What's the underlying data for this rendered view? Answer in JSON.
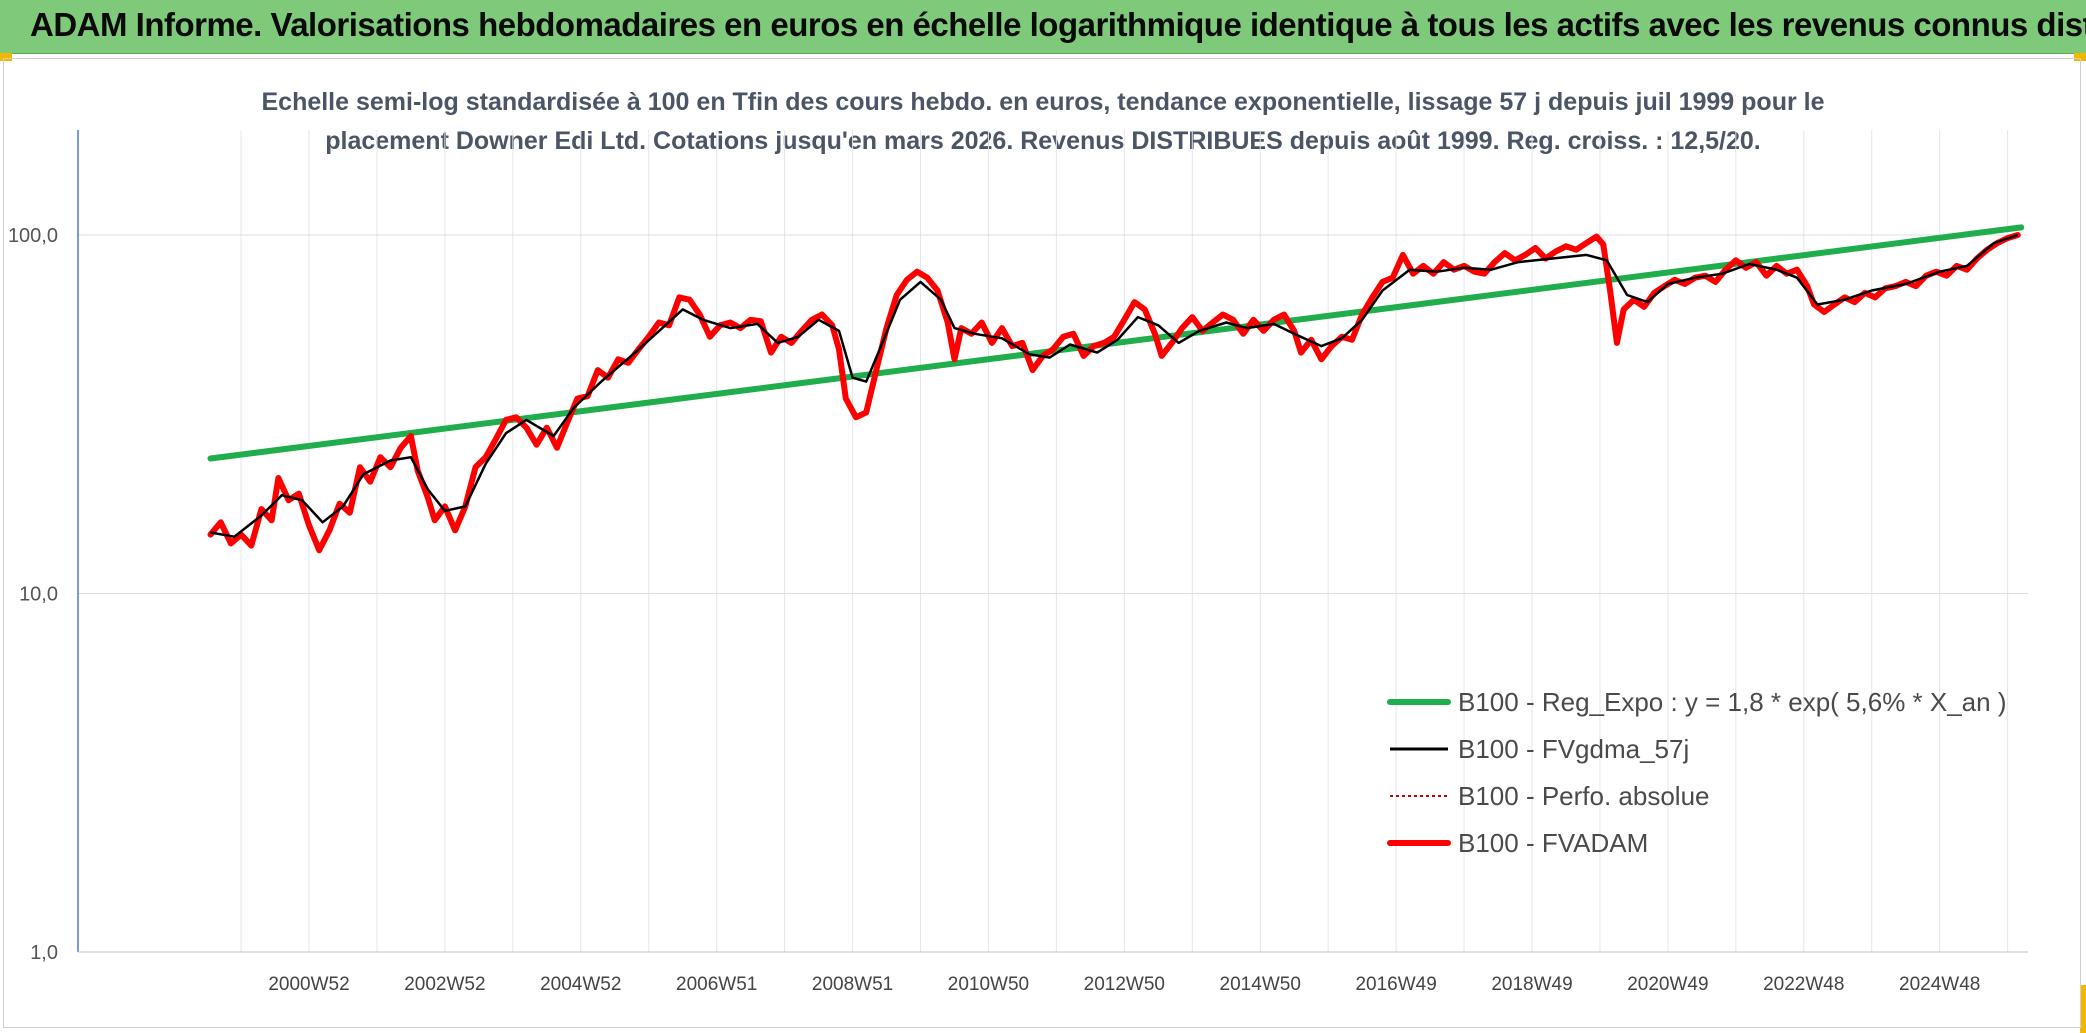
{
  "header": {
    "title": "ADAM Informe. Valorisations hebdomadaires en euros en échelle logarithmique identique à tous les actifs avec les revenus connus distribués"
  },
  "chart_data": {
    "type": "line",
    "title_line1": "Echelle semi-log standardisée à 100 en Tfin des cours hebdo. en euros, tendance exponentielle, lissage 57 j depuis juil 1999 pour le",
    "title_line2": "placement Downer Edi Ltd. Cotations jusqu'en mars 2026. Revenus DISTRIBUES depuis août 1999. Reg. croiss. : 12,5/20.",
    "y_scale": "log",
    "ylim": [
      1,
      100
    ],
    "y_ticks": [
      {
        "value": 100,
        "label": "100,0"
      },
      {
        "value": 10,
        "label": "10,0"
      },
      {
        "value": 1,
        "label": "1,0"
      }
    ],
    "x_range": [
      1997.6,
      2026.3
    ],
    "x_ticks": [
      {
        "value": 2001.0,
        "label": "2000W52"
      },
      {
        "value": 2003.0,
        "label": "2002W52"
      },
      {
        "value": 2005.0,
        "label": "2004W52"
      },
      {
        "value": 2007.0,
        "label": "2006W51"
      },
      {
        "value": 2009.0,
        "label": "2008W51"
      },
      {
        "value": 2011.0,
        "label": "2010W50"
      },
      {
        "value": 2013.0,
        "label": "2012W50"
      },
      {
        "value": 2015.0,
        "label": "2014W50"
      },
      {
        "value": 2017.0,
        "label": "2016W49"
      },
      {
        "value": 2019.0,
        "label": "2018W49"
      },
      {
        "value": 2021.0,
        "label": "2020W49"
      },
      {
        "value": 2023.0,
        "label": "2022W48"
      },
      {
        "value": 2025.0,
        "label": "2024W48"
      }
    ],
    "grid": true,
    "legend_position": "bottom-right",
    "series": [
      {
        "name": "B100 - Reg_Expo : y = 1,8 * exp( 5,6% *  X_an )",
        "color": "#1fae4b",
        "style": "thick",
        "points": [
          [
            1999.55,
            23.8
          ],
          [
            2026.2,
            105.0
          ]
        ]
      },
      {
        "name": "B100 - FVgdma_57j",
        "color": "#000000",
        "style": "thin",
        "points": [
          [
            1999.55,
            14.8
          ],
          [
            1999.9,
            14.4
          ],
          [
            2000.3,
            16.5
          ],
          [
            2000.6,
            18.8
          ],
          [
            2000.9,
            18.2
          ],
          [
            2001.2,
            15.8
          ],
          [
            2001.5,
            17.5
          ],
          [
            2001.8,
            21.5
          ],
          [
            2002.2,
            23.5
          ],
          [
            2002.5,
            24.0
          ],
          [
            2002.75,
            19.5
          ],
          [
            2003.0,
            17.0
          ],
          [
            2003.3,
            17.5
          ],
          [
            2003.6,
            23.0
          ],
          [
            2003.9,
            28.0
          ],
          [
            2004.2,
            30.5
          ],
          [
            2004.6,
            27.5
          ],
          [
            2004.9,
            33.0
          ],
          [
            2005.3,
            39.0
          ],
          [
            2005.8,
            47.0
          ],
          [
            2006.2,
            55.0
          ],
          [
            2006.5,
            62.0
          ],
          [
            2006.8,
            58.0
          ],
          [
            2007.2,
            55.0
          ],
          [
            2007.6,
            56.5
          ],
          [
            2007.9,
            50.0
          ],
          [
            2008.2,
            52.0
          ],
          [
            2008.5,
            58.0
          ],
          [
            2008.8,
            54.0
          ],
          [
            2009.0,
            40.0
          ],
          [
            2009.2,
            39.0
          ],
          [
            2009.4,
            48.0
          ],
          [
            2009.7,
            66.0
          ],
          [
            2010.0,
            74.0
          ],
          [
            2010.3,
            66.0
          ],
          [
            2010.5,
            55.0
          ],
          [
            2010.8,
            53.0
          ],
          [
            2011.2,
            51.5
          ],
          [
            2011.6,
            46.5
          ],
          [
            2011.9,
            45.5
          ],
          [
            2012.2,
            49.5
          ],
          [
            2012.6,
            47.0
          ],
          [
            2012.9,
            51.0
          ],
          [
            2013.2,
            59.0
          ],
          [
            2013.5,
            56.0
          ],
          [
            2013.8,
            50.0
          ],
          [
            2014.1,
            54.0
          ],
          [
            2014.5,
            57.0
          ],
          [
            2014.8,
            55.0
          ],
          [
            2015.2,
            56.5
          ],
          [
            2015.5,
            53.0
          ],
          [
            2015.9,
            49.0
          ],
          [
            2016.2,
            51.5
          ],
          [
            2016.5,
            58.0
          ],
          [
            2016.8,
            70.0
          ],
          [
            2017.2,
            80.0
          ],
          [
            2017.6,
            79.0
          ],
          [
            2018.0,
            81.0
          ],
          [
            2018.4,
            80.0
          ],
          [
            2018.8,
            84.0
          ],
          [
            2019.3,
            86.0
          ],
          [
            2019.8,
            88.0
          ],
          [
            2020.1,
            85.0
          ],
          [
            2020.4,
            68.0
          ],
          [
            2020.7,
            65.0
          ],
          [
            2021.0,
            73.0
          ],
          [
            2021.4,
            76.0
          ],
          [
            2021.8,
            78.0
          ],
          [
            2022.2,
            83.0
          ],
          [
            2022.6,
            80.0
          ],
          [
            2022.9,
            76.0
          ],
          [
            2023.2,
            64.0
          ],
          [
            2023.6,
            66.0
          ],
          [
            2024.0,
            70.0
          ],
          [
            2024.5,
            73.0
          ],
          [
            2025.0,
            79.0
          ],
          [
            2025.4,
            82.0
          ],
          [
            2025.8,
            95.0
          ],
          [
            2026.15,
            100.0
          ]
        ]
      },
      {
        "name": "B100 - Perfo. absolue",
        "color": "#c00000",
        "style": "dotted",
        "points": []
      },
      {
        "name": "B100 - FVADAM",
        "color": "#ff0000",
        "style": "thick",
        "points": [
          [
            1999.55,
            14.6
          ],
          [
            1999.7,
            15.8
          ],
          [
            1999.85,
            13.8
          ],
          [
            2000.0,
            14.6
          ],
          [
            2000.15,
            13.6
          ],
          [
            2000.3,
            17.2
          ],
          [
            2000.45,
            16.0
          ],
          [
            2000.55,
            21.0
          ],
          [
            2000.7,
            18.2
          ],
          [
            2000.85,
            19.0
          ],
          [
            2001.0,
            15.5
          ],
          [
            2001.15,
            13.2
          ],
          [
            2001.3,
            15.0
          ],
          [
            2001.45,
            17.8
          ],
          [
            2001.6,
            16.8
          ],
          [
            2001.75,
            22.5
          ],
          [
            2001.9,
            20.5
          ],
          [
            2002.05,
            24.0
          ],
          [
            2002.2,
            22.5
          ],
          [
            2002.35,
            25.5
          ],
          [
            2002.5,
            27.5
          ],
          [
            2002.6,
            22.0
          ],
          [
            2002.75,
            18.5
          ],
          [
            2002.85,
            16.0
          ],
          [
            2003.0,
            17.5
          ],
          [
            2003.15,
            15.0
          ],
          [
            2003.3,
            17.5
          ],
          [
            2003.45,
            22.5
          ],
          [
            2003.6,
            24.0
          ],
          [
            2003.75,
            27.0
          ],
          [
            2003.9,
            30.5
          ],
          [
            2004.05,
            31.0
          ],
          [
            2004.2,
            29.0
          ],
          [
            2004.35,
            26.0
          ],
          [
            2004.5,
            29.0
          ],
          [
            2004.65,
            25.5
          ],
          [
            2004.8,
            30.0
          ],
          [
            2004.95,
            35.0
          ],
          [
            2005.1,
            35.5
          ],
          [
            2005.25,
            42.0
          ],
          [
            2005.4,
            40.0
          ],
          [
            2005.55,
            45.0
          ],
          [
            2005.7,
            44.0
          ],
          [
            2005.85,
            48.0
          ],
          [
            2006.0,
            52.0
          ],
          [
            2006.15,
            57.0
          ],
          [
            2006.3,
            56.0
          ],
          [
            2006.45,
            67.0
          ],
          [
            2006.6,
            66.0
          ],
          [
            2006.75,
            60.0
          ],
          [
            2006.9,
            52.0
          ],
          [
            2007.05,
            56.0
          ],
          [
            2007.2,
            57.0
          ],
          [
            2007.35,
            55.0
          ],
          [
            2007.5,
            58.0
          ],
          [
            2007.65,
            57.5
          ],
          [
            2007.8,
            47.0
          ],
          [
            2007.95,
            52.0
          ],
          [
            2008.1,
            50.0
          ],
          [
            2008.25,
            54.0
          ],
          [
            2008.4,
            58.0
          ],
          [
            2008.55,
            60.0
          ],
          [
            2008.7,
            56.0
          ],
          [
            2008.8,
            48.0
          ],
          [
            2008.9,
            35.0
          ],
          [
            2009.05,
            31.0
          ],
          [
            2009.2,
            32.0
          ],
          [
            2009.35,
            42.0
          ],
          [
            2009.5,
            55.0
          ],
          [
            2009.65,
            68.0
          ],
          [
            2009.8,
            75.0
          ],
          [
            2009.95,
            79.0
          ],
          [
            2010.1,
            76.0
          ],
          [
            2010.25,
            70.0
          ],
          [
            2010.4,
            57.0
          ],
          [
            2010.5,
            45.0
          ],
          [
            2010.6,
            55.0
          ],
          [
            2010.75,
            53.0
          ],
          [
            2010.9,
            57.0
          ],
          [
            2011.05,
            50.0
          ],
          [
            2011.2,
            55.0
          ],
          [
            2011.35,
            49.0
          ],
          [
            2011.5,
            50.0
          ],
          [
            2011.65,
            42.0
          ],
          [
            2011.8,
            46.0
          ],
          [
            2011.95,
            48.0
          ],
          [
            2012.1,
            52.0
          ],
          [
            2012.25,
            53.0
          ],
          [
            2012.4,
            46.0
          ],
          [
            2012.55,
            49.0
          ],
          [
            2012.7,
            50.0
          ],
          [
            2012.85,
            52.0
          ],
          [
            2013.0,
            58.0
          ],
          [
            2013.15,
            65.0
          ],
          [
            2013.3,
            62.0
          ],
          [
            2013.45,
            53.0
          ],
          [
            2013.55,
            46.0
          ],
          [
            2013.7,
            50.0
          ],
          [
            2013.85,
            55.0
          ],
          [
            2014.0,
            59.0
          ],
          [
            2014.15,
            54.0
          ],
          [
            2014.3,
            57.0
          ],
          [
            2014.45,
            60.0
          ],
          [
            2014.6,
            58.0
          ],
          [
            2014.75,
            53.0
          ],
          [
            2014.9,
            58.0
          ],
          [
            2015.05,
            54.0
          ],
          [
            2015.2,
            58.0
          ],
          [
            2015.35,
            60.0
          ],
          [
            2015.5,
            54.0
          ],
          [
            2015.6,
            47.0
          ],
          [
            2015.75,
            51.0
          ],
          [
            2015.9,
            45.0
          ],
          [
            2016.05,
            49.0
          ],
          [
            2016.2,
            52.0
          ],
          [
            2016.35,
            51.0
          ],
          [
            2016.5,
            60.0
          ],
          [
            2016.65,
            67.0
          ],
          [
            2016.8,
            74.0
          ],
          [
            2016.95,
            76.0
          ],
          [
            2017.1,
            88.0
          ],
          [
            2017.25,
            78.0
          ],
          [
            2017.4,
            82.0
          ],
          [
            2017.55,
            78.0
          ],
          [
            2017.7,
            84.0
          ],
          [
            2017.85,
            80.0
          ],
          [
            2018.0,
            82.0
          ],
          [
            2018.15,
            79.0
          ],
          [
            2018.3,
            78.0
          ],
          [
            2018.45,
            84.0
          ],
          [
            2018.6,
            89.0
          ],
          [
            2018.75,
            85.0
          ],
          [
            2018.9,
            88.0
          ],
          [
            2019.05,
            92.0
          ],
          [
            2019.2,
            86.0
          ],
          [
            2019.35,
            90.0
          ],
          [
            2019.5,
            93.0
          ],
          [
            2019.65,
            91.0
          ],
          [
            2019.8,
            95.0
          ],
          [
            2019.95,
            99.0
          ],
          [
            2020.05,
            94.0
          ],
          [
            2020.15,
            70.0
          ],
          [
            2020.25,
            50.0
          ],
          [
            2020.35,
            62.0
          ],
          [
            2020.5,
            66.0
          ],
          [
            2020.65,
            63.0
          ],
          [
            2020.8,
            69.0
          ],
          [
            2020.95,
            72.0
          ],
          [
            2021.1,
            75.0
          ],
          [
            2021.25,
            73.0
          ],
          [
            2021.4,
            76.0
          ],
          [
            2021.55,
            77.0
          ],
          [
            2021.7,
            74.0
          ],
          [
            2021.85,
            80.0
          ],
          [
            2022.0,
            85.0
          ],
          [
            2022.15,
            81.0
          ],
          [
            2022.3,
            84.0
          ],
          [
            2022.45,
            77.0
          ],
          [
            2022.6,
            82.0
          ],
          [
            2022.75,
            78.0
          ],
          [
            2022.9,
            80.0
          ],
          [
            2023.05,
            72.0
          ],
          [
            2023.15,
            64.0
          ],
          [
            2023.3,
            61.0
          ],
          [
            2023.45,
            64.0
          ],
          [
            2023.6,
            67.0
          ],
          [
            2023.75,
            65.0
          ],
          [
            2023.9,
            69.0
          ],
          [
            2024.05,
            67.0
          ],
          [
            2024.2,
            71.0
          ],
          [
            2024.35,
            72.0
          ],
          [
            2024.5,
            74.0
          ],
          [
            2024.65,
            72.0
          ],
          [
            2024.8,
            77.0
          ],
          [
            2024.95,
            79.0
          ],
          [
            2025.1,
            77.0
          ],
          [
            2025.25,
            82.0
          ],
          [
            2025.4,
            80.0
          ],
          [
            2025.55,
            86.0
          ],
          [
            2025.7,
            91.0
          ],
          [
            2025.85,
            95.0
          ],
          [
            2026.0,
            98.0
          ],
          [
            2026.15,
            100.0
          ]
        ]
      }
    ]
  }
}
